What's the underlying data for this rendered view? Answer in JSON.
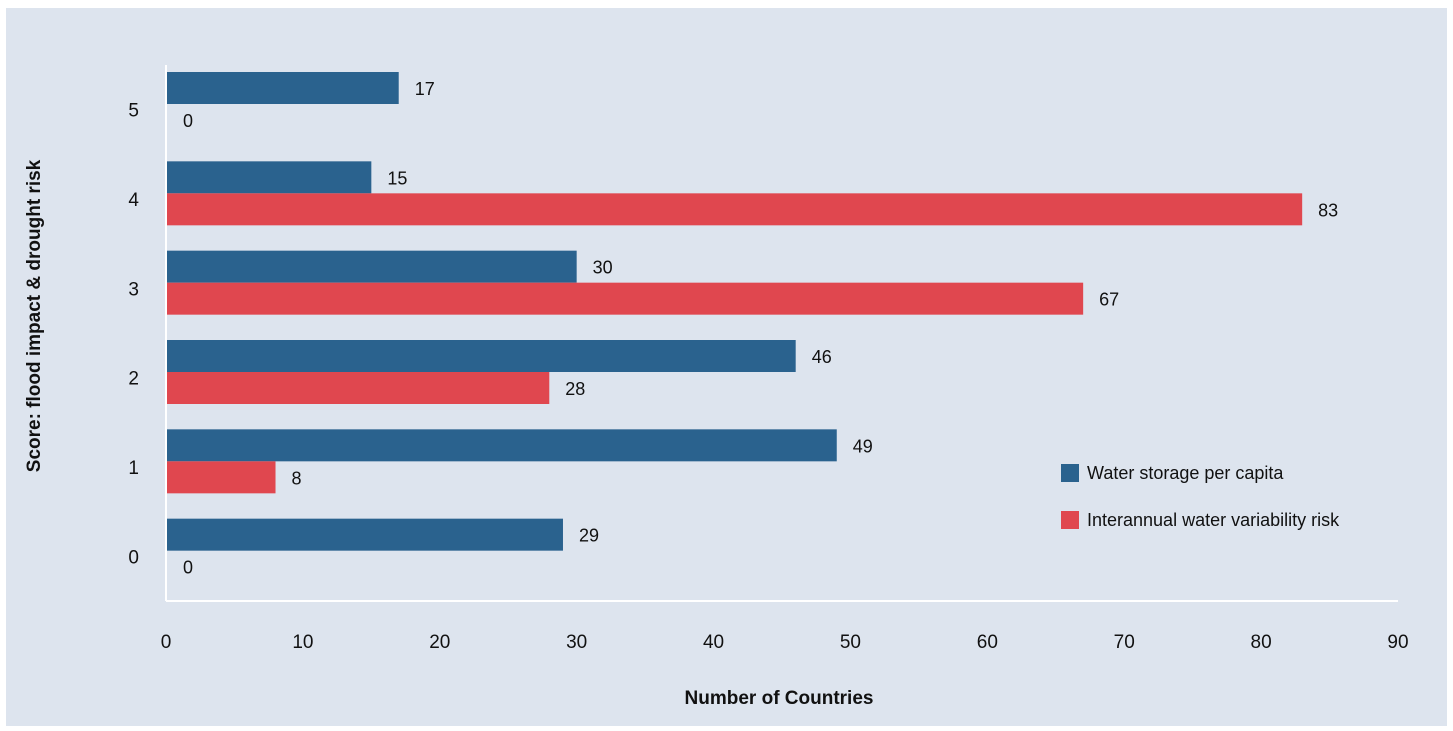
{
  "chart_data": {
    "type": "bar",
    "orientation": "horizontal",
    "categories": [
      "5",
      "4",
      "3",
      "2",
      "1",
      "0"
    ],
    "series": [
      {
        "name": "Water storage per capita",
        "color": "#2a628e",
        "values": [
          17,
          15,
          30,
          46,
          49,
          29
        ]
      },
      {
        "name": "Interannual water variability risk",
        "color": "#e0474f",
        "values": [
          0,
          83,
          67,
          28,
          8,
          0
        ]
      }
    ],
    "xlabel": "Number of Countries",
    "ylabel": "Score: flood impact & drought risk",
    "xlim": [
      0,
      90
    ],
    "xticks": [
      "0",
      "10",
      "20",
      "30",
      "40",
      "50",
      "60",
      "70",
      "80",
      "90"
    ],
    "grid": false,
    "legend_position": "right",
    "background": "#dde4ee"
  }
}
